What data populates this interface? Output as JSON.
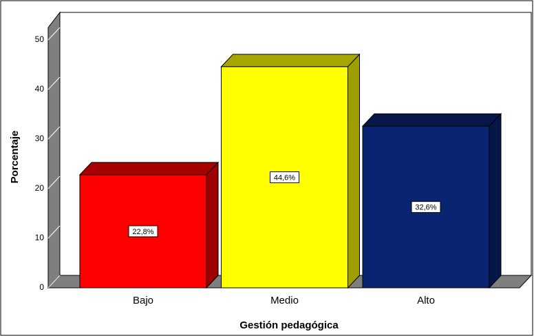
{
  "chart_data": {
    "type": "bar",
    "categories": [
      "Bajo",
      "Medio",
      "Alto"
    ],
    "values": [
      22.8,
      44.6,
      32.6
    ],
    "value_labels": [
      "22,8%",
      "44,6%",
      "32,6%"
    ],
    "colors": [
      "#ff0000",
      "#ffff00",
      "#0a2472"
    ],
    "xlabel": "Gestión pedagógica",
    "ylabel": "Porcentaje",
    "ylim": [
      0,
      50
    ],
    "yticks": [
      0,
      10,
      20,
      30,
      40,
      50
    ]
  }
}
